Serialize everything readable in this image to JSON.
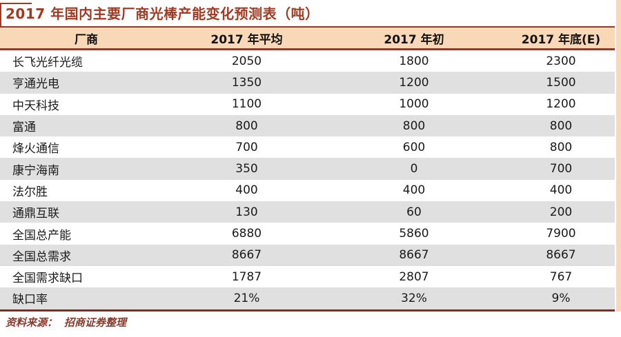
{
  "meta": {
    "source_label": "资料来源：",
    "source_name": "招商证券整理"
  },
  "colors": {
    "title_red": "#a13a21",
    "rule_maroon": "#8b3a2b",
    "header_tan": "#f9d8b8",
    "row_alt_gray": "#e0e0e0"
  },
  "chart_data": {
    "type": "table",
    "title": "2017 年国内主要厂商光棒产能变化预测表（吨）",
    "columns": [
      "厂商",
      "2017 年平均",
      "2017 年初",
      "2017 年底(E)"
    ],
    "rows": [
      {
        "name": "长飞光纤光缆",
        "values": [
          "2050",
          "1800",
          "2300"
        ]
      },
      {
        "name": "亨通光电",
        "values": [
          "1350",
          "1200",
          "1500"
        ]
      },
      {
        "name": "中天科技",
        "values": [
          "1100",
          "1000",
          "1200"
        ]
      },
      {
        "name": "富通",
        "values": [
          "800",
          "800",
          "800"
        ]
      },
      {
        "name": "烽火通信",
        "values": [
          "700",
          "600",
          "800"
        ]
      },
      {
        "name": "康宁海南",
        "values": [
          "350",
          "0",
          "700"
        ]
      },
      {
        "name": "法尔胜",
        "values": [
          "400",
          "400",
          "400"
        ]
      },
      {
        "name": "通鼎互联",
        "values": [
          "130",
          "60",
          "200"
        ]
      },
      {
        "name": "全国总产能",
        "values": [
          "6880",
          "5860",
          "7900"
        ]
      },
      {
        "name": "全国总需求",
        "values": [
          "8667",
          "8667",
          "8667"
        ]
      },
      {
        "name": "全国需求缺口",
        "values": [
          "1787",
          "2807",
          "767"
        ]
      },
      {
        "name": "缺口率",
        "values": [
          "21%",
          "32%",
          "9%"
        ]
      }
    ],
    "source": "资料来源： 招商证券整理"
  }
}
